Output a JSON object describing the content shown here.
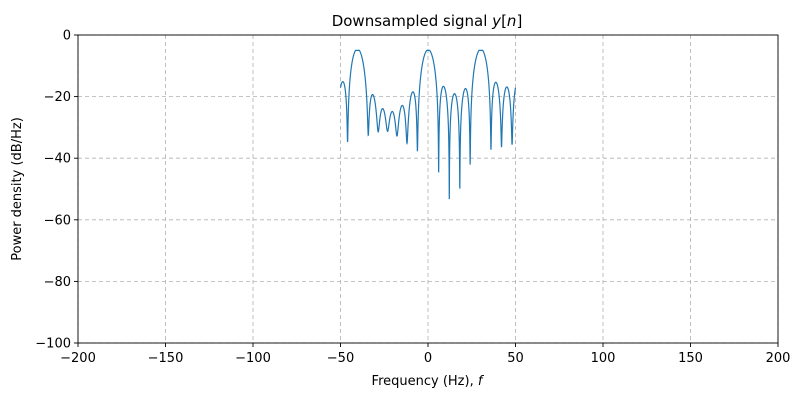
{
  "chart_data": {
    "type": "line",
    "title": "Downsampled signal y[n]",
    "xlabel": "Frequency (Hz), f",
    "ylabel": "Power density (dB/Hz)",
    "xlim": [
      -200,
      200
    ],
    "ylim": [
      -100,
      0
    ],
    "xticks": [
      -200,
      -150,
      -100,
      -50,
      0,
      50,
      100,
      150,
      200
    ],
    "yticks": [
      0,
      -20,
      -40,
      -60,
      -80,
      -100
    ],
    "xtick_labels": [
      "−200",
      "−150",
      "−100",
      "−50",
      "0",
      "50",
      "100",
      "150",
      "200"
    ],
    "ytick_labels": [
      "0",
      "−20",
      "−40",
      "−60",
      "−80",
      "−100"
    ],
    "grid": true,
    "series": [
      {
        "color": "#1f77b4",
        "peaks": [
          {
            "x": -40,
            "y": -5
          },
          {
            "x": 0,
            "y": -5
          },
          {
            "x": 30,
            "y": -5
          }
        ],
        "x_range": [
          -50,
          50
        ],
        "floor": -100
      }
    ]
  }
}
